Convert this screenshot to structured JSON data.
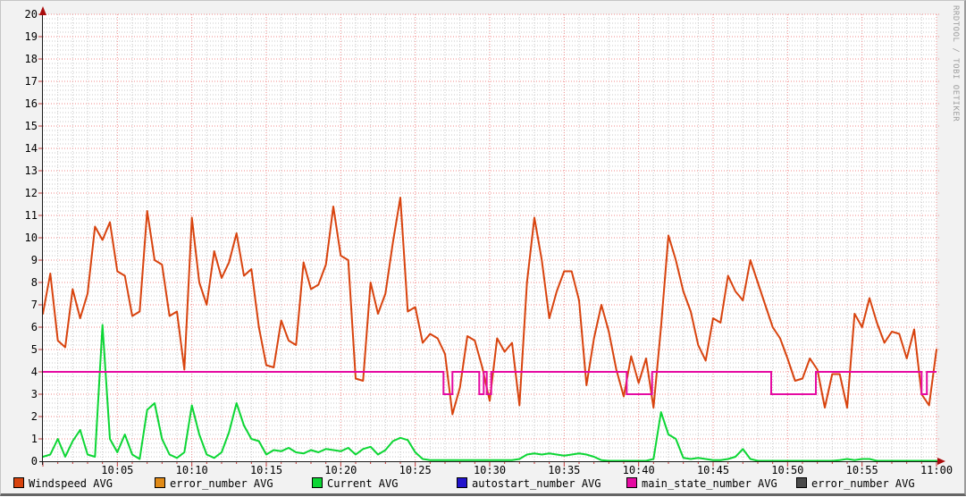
{
  "watermark": "RRDTOOL / TOBI OETIKER",
  "colors": {
    "frame_background": "#f2f2f2",
    "plot_background": "#ffffff",
    "grid_minor": "#c9c9c9",
    "grid_major": "#f08a8a",
    "axis": "#1a1a1a",
    "axis_arrow": "#aa0c0c",
    "tick": "#c03838",
    "text": "#000000",
    "watermark_text": "#9e9e9e"
  },
  "axes": {
    "y_tick_labels": [
      "0",
      "1",
      "2",
      "3",
      "4",
      "5",
      "6",
      "7",
      "8",
      "9",
      "10",
      "11",
      "12",
      "13",
      "14",
      "15",
      "16",
      "17",
      "18",
      "19",
      "20"
    ],
    "x_ticks": [
      {
        "label": "10:05",
        "min": 5
      },
      {
        "label": "10:10",
        "min": 10
      },
      {
        "label": "10:15",
        "min": 15
      },
      {
        "label": "10:20",
        "min": 20
      },
      {
        "label": "10:25",
        "min": 25
      },
      {
        "label": "10:30",
        "min": 30
      },
      {
        "label": "10:35",
        "min": 35
      },
      {
        "label": "10:40",
        "min": 40
      },
      {
        "label": "10:45",
        "min": 45
      },
      {
        "label": "10:50",
        "min": 50
      },
      {
        "label": "10:55",
        "min": 55
      },
      {
        "label": "11:00",
        "min": 60
      }
    ]
  },
  "legend": {
    "items": [
      {
        "label": "Windspeed AVG",
        "color": "#d8430e"
      },
      {
        "label": "error_number AVG",
        "color": "#e08a17"
      },
      {
        "label": "Current AVG",
        "color": "#0cd634"
      },
      {
        "label": "autostart_number AVG",
        "color": "#2213cc"
      },
      {
        "label": "main_state_number AVG",
        "color": "#e50aa2"
      },
      {
        "label": "error_number AVG",
        "color": "#4a4a4a"
      }
    ]
  },
  "chart_data": {
    "type": "line",
    "title": "",
    "xlabel": "",
    "ylabel": "",
    "x_start": "10:00",
    "x_end": "11:00",
    "x_range_minutes": [
      0,
      60
    ],
    "ylim": [
      0,
      20
    ],
    "grid": "on",
    "legend_position": "bottom",
    "sample_interval_minutes": 0.5,
    "series": [
      {
        "name": "Windspeed AVG",
        "color": "#d8430e",
        "visible": true,
        "kind": "sampled",
        "values": [
          6.6,
          8.4,
          5.4,
          5.1,
          7.7,
          6.4,
          7.5,
          10.5,
          9.9,
          10.7,
          8.5,
          8.3,
          6.5,
          6.7,
          11.2,
          9.0,
          8.8,
          6.5,
          6.7,
          4.1,
          10.9,
          8.0,
          7.0,
          9.4,
          8.2,
          8.9,
          10.2,
          8.3,
          8.6,
          6.0,
          4.3,
          4.2,
          6.3,
          5.4,
          5.2,
          8.9,
          7.7,
          7.9,
          8.8,
          11.4,
          9.2,
          9.0,
          3.7,
          3.6,
          8.0,
          6.6,
          7.5,
          9.8,
          11.8,
          6.7,
          6.9,
          5.3,
          5.7,
          5.5,
          4.8,
          2.1,
          3.3,
          5.6,
          5.4,
          4.2,
          2.7,
          5.5,
          4.9,
          5.3,
          2.5,
          8.0,
          10.9,
          9.0,
          6.4,
          7.6,
          8.5,
          8.5,
          7.2,
          3.4,
          5.5,
          7.0,
          5.8,
          4.1,
          2.9,
          4.7,
          3.5,
          4.6,
          2.4,
          6.0,
          10.1,
          9.0,
          7.6,
          6.7,
          5.2,
          4.5,
          6.4,
          6.2,
          8.3,
          7.6,
          7.2,
          9.0,
          8.0,
          7.0,
          6.0,
          5.5,
          4.6,
          3.6,
          3.7,
          4.6,
          4.1,
          2.4,
          3.9,
          3.9,
          2.4,
          6.6,
          6.0,
          7.3,
          6.2,
          5.3,
          5.8,
          5.7,
          4.6,
          5.9,
          3.0,
          2.5,
          5.0
        ]
      },
      {
        "name": "error_number AVG",
        "color": "#e08a17",
        "visible": false,
        "kind": "sampled",
        "values": []
      },
      {
        "name": "Current AVG",
        "color": "#0cd634",
        "visible": true,
        "kind": "sampled",
        "values": [
          0.2,
          0.3,
          1.0,
          0.2,
          0.9,
          1.4,
          0.3,
          0.2,
          6.1,
          1.0,
          0.4,
          1.2,
          0.3,
          0.1,
          2.3,
          2.6,
          1.0,
          0.3,
          0.15,
          0.4,
          2.5,
          1.2,
          0.3,
          0.15,
          0.4,
          1.3,
          2.6,
          1.6,
          1.0,
          0.9,
          0.3,
          0.5,
          0.45,
          0.6,
          0.4,
          0.35,
          0.5,
          0.4,
          0.55,
          0.5,
          0.45,
          0.6,
          0.3,
          0.55,
          0.65,
          0.3,
          0.5,
          0.9,
          1.05,
          0.95,
          0.4,
          0.1,
          0.05,
          0.05,
          0.05,
          0.05,
          0.05,
          0.05,
          0.05,
          0.05,
          0.05,
          0.05,
          0.05,
          0.05,
          0.1,
          0.3,
          0.35,
          0.3,
          0.35,
          0.3,
          0.25,
          0.3,
          0.35,
          0.3,
          0.2,
          0.05,
          0.02,
          0.02,
          0.02,
          0.02,
          0.02,
          0.02,
          0.1,
          2.2,
          1.2,
          1.0,
          0.15,
          0.1,
          0.15,
          0.1,
          0.05,
          0.05,
          0.1,
          0.2,
          0.55,
          0.1,
          0.02,
          0.02,
          0.02,
          0.02,
          0.02,
          0.02,
          0.02,
          0.02,
          0.02,
          0.02,
          0.02,
          0.05,
          0.1,
          0.05,
          0.1,
          0.1,
          0.02,
          0.02,
          0.02,
          0.02,
          0.02,
          0.02,
          0.02,
          0.02,
          0.02
        ]
      },
      {
        "name": "autostart_number AVG",
        "color": "#2213cc",
        "visible": false,
        "kind": "sampled",
        "values": []
      },
      {
        "name": "main_state_number AVG",
        "color": "#e50aa2",
        "visible": true,
        "kind": "step_segments",
        "segments": [
          [
            0,
            26.9,
            4
          ],
          [
            26.9,
            27.5,
            3
          ],
          [
            27.5,
            29.3,
            4
          ],
          [
            29.3,
            29.6,
            3
          ],
          [
            29.6,
            29.8,
            4
          ],
          [
            29.8,
            30.1,
            3
          ],
          [
            30.1,
            39.2,
            4
          ],
          [
            39.2,
            40.9,
            3
          ],
          [
            40.9,
            48.9,
            4
          ],
          [
            48.9,
            51.9,
            3
          ],
          [
            51.9,
            59.0,
            4
          ],
          [
            59.0,
            59.35,
            3
          ],
          [
            59.35,
            60,
            4
          ]
        ]
      },
      {
        "name": "error_number AVG",
        "color": "#4a4a4a",
        "visible": false,
        "kind": "sampled",
        "values": []
      }
    ]
  }
}
